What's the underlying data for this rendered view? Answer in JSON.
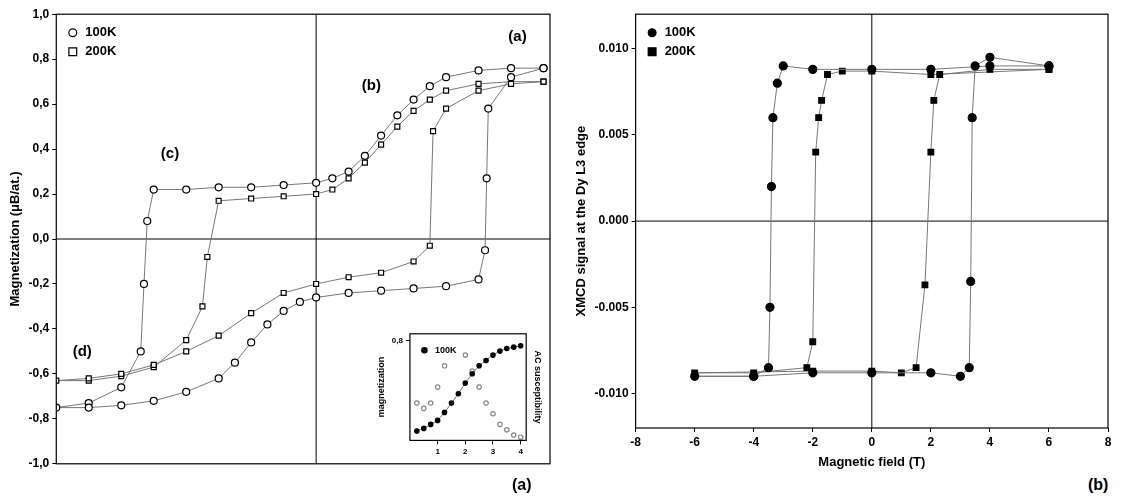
{
  "chart_data": [
    {
      "type": "scatter",
      "panel_label": "(a)",
      "y_label": "Magnetization (μB/at.)",
      "xlim": [
        -8,
        7.2
      ],
      "ylim": [
        -1,
        1
      ],
      "yticks": [
        {
          "value": -1,
          "label": "-1,0"
        },
        {
          "value": -0.8,
          "label": "-0,8"
        },
        {
          "value": -0.6,
          "label": "-0,6"
        },
        {
          "value": -0.4,
          "label": "-0,4"
        },
        {
          "value": -0.2,
          "label": "-0,2"
        },
        {
          "value": 0,
          "label": "0,0"
        },
        {
          "value": 0.2,
          "label": "0,2"
        },
        {
          "value": 0.4,
          "label": "0,4"
        },
        {
          "value": 0.6,
          "label": "0,6"
        },
        {
          "value": 0.8,
          "label": "0,8"
        },
        {
          "value": 1,
          "label": "1,0"
        }
      ],
      "tick_labels": "y",
      "grid": false,
      "legend": "upper left",
      "series": [
        {
          "name": "100K",
          "color": "#000000",
          "marker": "circle_open",
          "line_style": "solid",
          "x": [
            7,
            6,
            5,
            4,
            3.5,
            3,
            2.5,
            2,
            1.5,
            1,
            0.5,
            0,
            -1,
            -2,
            -3,
            -4,
            -5,
            -5.2,
            -5.3,
            -5.4,
            -6,
            -7,
            -8,
            -7,
            -6,
            -5,
            -4,
            -3,
            -2.5,
            -2,
            -1.5,
            -1,
            -0.5,
            0,
            1,
            2,
            3,
            4,
            5,
            5.2,
            5.25,
            5.3,
            6,
            7
          ],
          "values": [
            0.76,
            0.76,
            0.75,
            0.72,
            0.68,
            0.62,
            0.55,
            0.46,
            0.37,
            0.3,
            0.27,
            0.25,
            0.24,
            0.23,
            0.23,
            0.22,
            0.22,
            0.08,
            -0.2,
            -0.5,
            -0.66,
            -0.73,
            -0.75,
            -0.75,
            -0.74,
            -0.72,
            -0.68,
            -0.62,
            -0.55,
            -0.46,
            -0.38,
            -0.32,
            -0.28,
            -0.26,
            -0.24,
            -0.23,
            -0.22,
            -0.21,
            -0.18,
            -0.05,
            0.27,
            0.58,
            0.72,
            0.76
          ]
        },
        {
          "name": "200K",
          "color": "#000000",
          "marker": "square_open",
          "line_style": "solid",
          "x": [
            7,
            6,
            5,
            4,
            3.5,
            3,
            2.5,
            2,
            1.5,
            1,
            0.5,
            0,
            -1,
            -2,
            -3,
            -3.35,
            -3.5,
            -4,
            -5,
            -6,
            -7,
            -8,
            -7,
            -6,
            -5,
            -4,
            -3,
            -2,
            -1,
            0,
            1,
            2,
            3,
            3.5,
            3.6,
            4,
            5,
            6,
            7
          ],
          "values": [
            0.7,
            0.7,
            0.69,
            0.66,
            0.62,
            0.57,
            0.5,
            0.42,
            0.34,
            0.27,
            0.22,
            0.2,
            0.19,
            0.18,
            0.17,
            -0.08,
            -0.3,
            -0.45,
            -0.57,
            -0.61,
            -0.63,
            -0.63,
            -0.62,
            -0.6,
            -0.56,
            -0.5,
            -0.43,
            -0.33,
            -0.24,
            -0.2,
            -0.17,
            -0.15,
            -0.1,
            -0.03,
            0.48,
            0.58,
            0.66,
            0.69,
            0.7
          ]
        }
      ],
      "annotations": [
        {
          "text": "(a)",
          "x": 6.2,
          "y": 0.9
        },
        {
          "text": "(b)",
          "x": 1.7,
          "y": 0.68
        },
        {
          "text": "(c)",
          "x": -4.5,
          "y": 0.38
        },
        {
          "text": "(d)",
          "x": -7.2,
          "y": -0.5
        }
      ]
    },
    {
      "type": "scatter",
      "y_label": "magnetization",
      "y2_label": "AC susceptibility",
      "x": [
        0.25,
        0.5,
        0.75,
        1,
        1.25,
        1.5,
        1.75,
        2,
        2.25,
        2.5,
        2.75,
        3,
        3.25,
        3.5,
        3.75,
        4
      ],
      "xlim": [
        0,
        4.2
      ],
      "xticks": [
        1,
        2,
        3,
        4
      ],
      "ylim": [
        0.05,
        0.85
      ],
      "yticks": [
        {
          "value": 0.8,
          "label": "0,8"
        }
      ],
      "y2lim": [
        0,
        1
      ],
      "y2ticks": [],
      "grid": false,
      "legend": "upper left",
      "series": [
        {
          "name": "100K",
          "color": "#000000",
          "marker": "circle",
          "line_style": "solid",
          "values": [
            0.12,
            0.14,
            0.17,
            0.2,
            0.26,
            0.33,
            0.4,
            0.48,
            0.55,
            0.61,
            0.65,
            0.69,
            0.72,
            0.74,
            0.75,
            0.76
          ]
        },
        {
          "color": "#888888",
          "marker": "circle_open",
          "line_style": "none",
          "axis": "y2",
          "values": [
            0.35,
            0.3,
            0.35,
            0.5,
            0.7,
            0.85,
            0.9,
            0.8,
            0.65,
            0.5,
            0.35,
            0.25,
            0.15,
            0.1,
            0.05,
            0.03
          ]
        }
      ]
    },
    {
      "type": "scatter",
      "panel_label": "(b)",
      "x_label": "Magnetic field (T)",
      "y_label": "XMCD signal at the Dy L3 edge",
      "xlim": [
        -8,
        8
      ],
      "xticks": [
        -8,
        -6,
        -4,
        -2,
        0,
        2,
        4,
        6,
        8
      ],
      "ylim": [
        -0.012,
        0.012
      ],
      "yticks": [
        {
          "value": -0.01,
          "label": "-0.010"
        },
        -0.005,
        {
          "value": 0,
          "label": "0.000"
        },
        0.005,
        {
          "value": 0.01,
          "label": "0.010"
        }
      ],
      "grid": false,
      "legend": "upper left",
      "series": [
        {
          "name": "100K",
          "color": "#000000",
          "marker": "circle",
          "line_style": "solid",
          "x": [
            6,
            4,
            2,
            0,
            -2,
            -3,
            -3.2,
            -3.35,
            -3.4,
            -3.45,
            -3.5,
            -4,
            -6,
            -4,
            -2,
            0,
            2,
            3,
            3.3,
            3.35,
            3.4,
            3.5,
            4,
            6
          ],
          "values": [
            0.009,
            0.009,
            0.0088,
            0.0088,
            0.0088,
            0.009,
            0.008,
            0.006,
            0.002,
            -0.005,
            -0.0085,
            -0.009,
            -0.009,
            -0.009,
            -0.0088,
            -0.0088,
            -0.0088,
            -0.009,
            -0.0085,
            -0.0035,
            0.006,
            0.009,
            0.0095,
            0.009
          ]
        },
        {
          "name": "200K",
          "color": "#000000",
          "marker": "square",
          "line_style": "solid",
          "x": [
            6,
            2,
            0,
            -1,
            -1.5,
            -1.7,
            -1.8,
            -1.9,
            -2.0,
            -2.2,
            -4,
            -6,
            -2,
            0,
            1,
            1.5,
            1.8,
            2.0,
            2.1,
            2.3,
            4,
            6
          ],
          "values": [
            0.0088,
            0.0085,
            0.0087,
            0.0087,
            0.0085,
            0.007,
            0.006,
            0.004,
            -0.007,
            -0.0085,
            -0.0088,
            -0.0088,
            -0.0087,
            -0.0087,
            -0.0088,
            -0.0085,
            -0.0037,
            0.004,
            0.007,
            0.0085,
            0.0088,
            0.0088
          ]
        }
      ]
    }
  ]
}
